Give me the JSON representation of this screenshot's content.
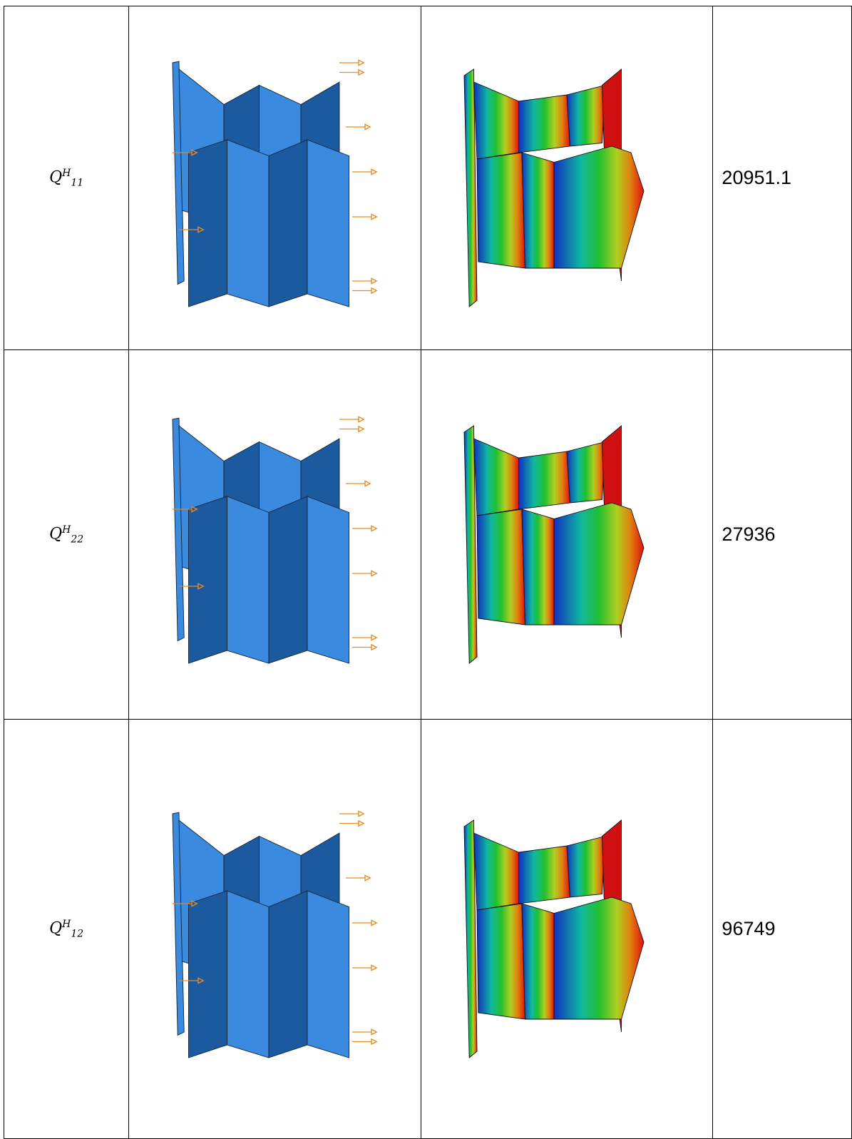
{
  "table": {
    "rows": [
      {
        "label": {
          "base": "Q",
          "sup": "H",
          "sub": "11"
        },
        "value": 20951.1
      },
      {
        "label": {
          "base": "Q",
          "sup": "H",
          "sub": "22"
        },
        "value": 27936
      },
      {
        "label": {
          "base": "Q",
          "sup": "H",
          "sub": "12"
        },
        "value": 96749
      }
    ]
  }
}
